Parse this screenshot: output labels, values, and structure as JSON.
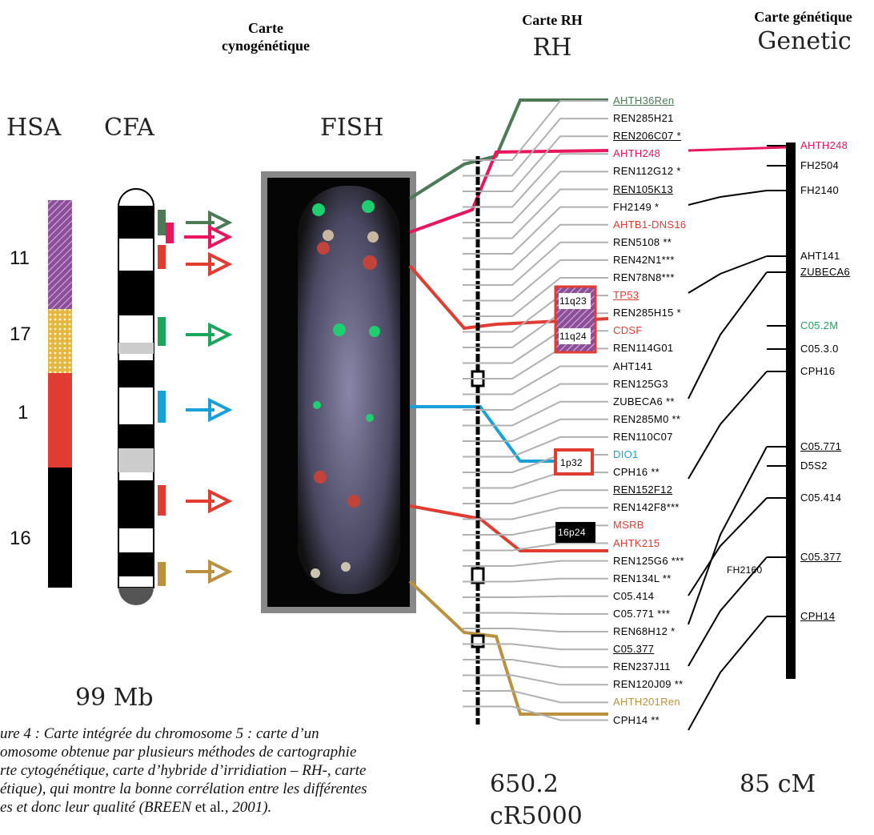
{
  "headers": {
    "cyto_line1": "Carte",
    "cyto_line2": "cynogénétique",
    "rh_title": "Carte RH",
    "rh_sub": "RH",
    "gen_title": "Carte génétique",
    "gen_sub": "Genetic"
  },
  "labels": {
    "hsa": "HSA",
    "cfa": "CFA",
    "fish": "FISH"
  },
  "hsa_numbers": [
    "11",
    "17",
    "1",
    "16"
  ],
  "bottom": {
    "mb": "99 Mb",
    "rh_value": "650.2",
    "rh_unit": "cR5000",
    "cm": "85 cM"
  },
  "colors": {
    "green_dark": "#4b7a55",
    "magenta": "#e8175d",
    "red": "#e03c31",
    "green": "#1aa65c",
    "cyan": "#1aa0d8",
    "gold": "#b9913f",
    "purple": "#8e4f9a",
    "yellow": "#e6b740",
    "gray": "#b0b0b0"
  },
  "rh_markers": [
    {
      "text": "AHTH36Ren",
      "color": "#4b7a55",
      "underline": true
    },
    {
      "text": "REN285H21",
      "color": "#000"
    },
    {
      "text": "REN206C07 *",
      "color": "#000",
      "underline": true
    },
    {
      "text": "AHTH248",
      "color": "#e8175d"
    },
    {
      "text": "REN112G12 *",
      "color": "#000"
    },
    {
      "text": "REN105K13",
      "color": "#000",
      "underline": true
    },
    {
      "text": "FH2149 *",
      "color": "#000"
    },
    {
      "text": "AHTB1-DNS16",
      "color": "#e03c31"
    },
    {
      "text": "REN5108 **",
      "color": "#000"
    },
    {
      "text": "REN42N1***",
      "color": "#000"
    },
    {
      "text": "REN78N8***",
      "color": "#000"
    },
    {
      "text": "TP53",
      "color": "#e03c31",
      "underline": true
    },
    {
      "text": "REN285H15 *",
      "color": "#000"
    },
    {
      "text": "CDSF",
      "color": "#e03c31"
    },
    {
      "text": "REN114G01",
      "color": "#000"
    },
    {
      "text": "AHT141",
      "color": "#000"
    },
    {
      "text": "REN125G3",
      "color": "#000"
    },
    {
      "text": "ZUBECA6 **",
      "color": "#000"
    },
    {
      "text": "REN285M0 **",
      "color": "#000"
    },
    {
      "text": "REN110C07",
      "color": "#000"
    },
    {
      "text": "DIO1",
      "color": "#1aa0d8"
    },
    {
      "text": "CPH16 **",
      "color": "#000"
    },
    {
      "text": "REN152F12",
      "color": "#000",
      "underline": true
    },
    {
      "text": "REN142F8***",
      "color": "#000"
    },
    {
      "text": "MSRB",
      "color": "#e03c31"
    },
    {
      "text": "AHTK215",
      "color": "#e03c31"
    },
    {
      "text": "REN125G6 ***",
      "color": "#000"
    },
    {
      "text": "REN134L **",
      "color": "#000"
    },
    {
      "text": "C05.414",
      "color": "#000"
    },
    {
      "text": "C05.771 ***",
      "color": "#000"
    },
    {
      "text": "REN68H12 *",
      "color": "#000"
    },
    {
      "text": "C05.377",
      "color": "#000",
      "underline": true
    },
    {
      "text": "REN237J11",
      "color": "#000"
    },
    {
      "text": "REN120J09 **",
      "color": "#000"
    },
    {
      "text": "AHTH201Ren",
      "color": "#b9913f"
    },
    {
      "text": "CPH14 **",
      "color": "#000"
    }
  ],
  "genetic_markers": [
    {
      "text": "AHTH248",
      "color": "#e8175d"
    },
    {
      "text": "FH2504",
      "color": "#000"
    },
    {
      "text": "FH2140",
      "color": "#000"
    },
    {
      "text": "AHT141",
      "color": "#000"
    },
    {
      "text": "ZUBECA6",
      "color": "#000",
      "underline": true
    },
    {
      "text": "C05.2M",
      "color": "#1aa65c"
    },
    {
      "text": "C05.3.0",
      "color": "#000"
    },
    {
      "text": "CPH16",
      "color": "#000"
    },
    {
      "text": "C05.771",
      "color": "#000",
      "underline": true
    },
    {
      "text": "D5S2",
      "color": "#000"
    },
    {
      "text": "C05.414",
      "color": "#000"
    },
    {
      "text": "C05.377",
      "color": "#000",
      "underline": true
    },
    {
      "text": "CPH14",
      "color": "#000",
      "underline": true
    }
  ],
  "hsa_bands": [
    "11q23",
    "11q24",
    "1p32",
    "16p24"
  ],
  "gen_mid_label": "FH2160",
  "caption": {
    "line1": "ure 4 : Carte intégrée du chromosome 5 : carte d’un",
    "line2": "omosome obtenue par plusieurs méthodes de cartographie",
    "line3": "rte cytogénétique, carte d’hybride d’irridiation – RH-, carte",
    "line4": "étique), qui montre la bonne corrélation entre les différentes",
    "line5a": "es et donc leur qualité (BREEN ",
    "line5b": "et al",
    "line5c": "., 2001)."
  }
}
